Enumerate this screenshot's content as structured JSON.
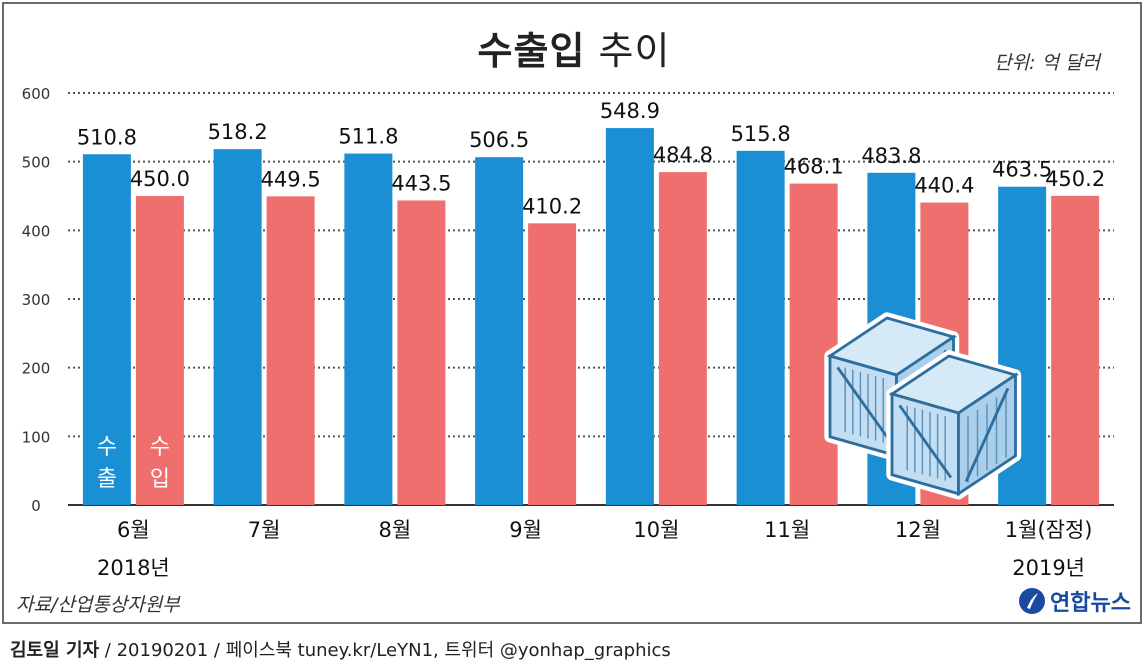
{
  "title_bold": "수출입",
  "title_light": "추이",
  "unit": "단위: 억 달러",
  "source": "자료/산업통상자원부",
  "logo": "연합뉴스",
  "footer": {
    "author": "김토일 기자",
    "rest": " / 20190201 / 페이스북 tuney.kr/LeYN1, 트위터 @yonhap_graphics"
  },
  "colors": {
    "export": "#1a8fd3",
    "import": "#ee6f6d",
    "axis": "#333333",
    "grid": "#555555"
  },
  "chart_data": {
    "type": "bar",
    "categories": [
      "6월",
      "7월",
      "8월",
      "9월",
      "10월",
      "11월",
      "12월",
      "1월(잠정)"
    ],
    "year_labels": [
      "2018년",
      "",
      "",
      "",
      "",
      "",
      "",
      "2019년"
    ],
    "series": [
      {
        "name": "수출",
        "values": [
          510.8,
          518.2,
          511.8,
          506.5,
          548.9,
          515.8,
          483.8,
          463.5
        ]
      },
      {
        "name": "수입",
        "values": [
          450.0,
          449.5,
          443.5,
          410.2,
          484.8,
          468.1,
          440.4,
          450.2
        ]
      }
    ],
    "value_labels": [
      [
        "510.8",
        "518.2",
        "511.8",
        "506.5",
        "548.9",
        "515.8",
        "483.8",
        "463.5"
      ],
      [
        "450.0",
        "449.5",
        "443.5",
        "410.2",
        "484.8",
        "468.1",
        "440.4",
        "450.2"
      ]
    ],
    "yticks": [
      0,
      100,
      200,
      300,
      400,
      500,
      600
    ],
    "ylim": [
      0,
      600
    ],
    "grid": true
  }
}
